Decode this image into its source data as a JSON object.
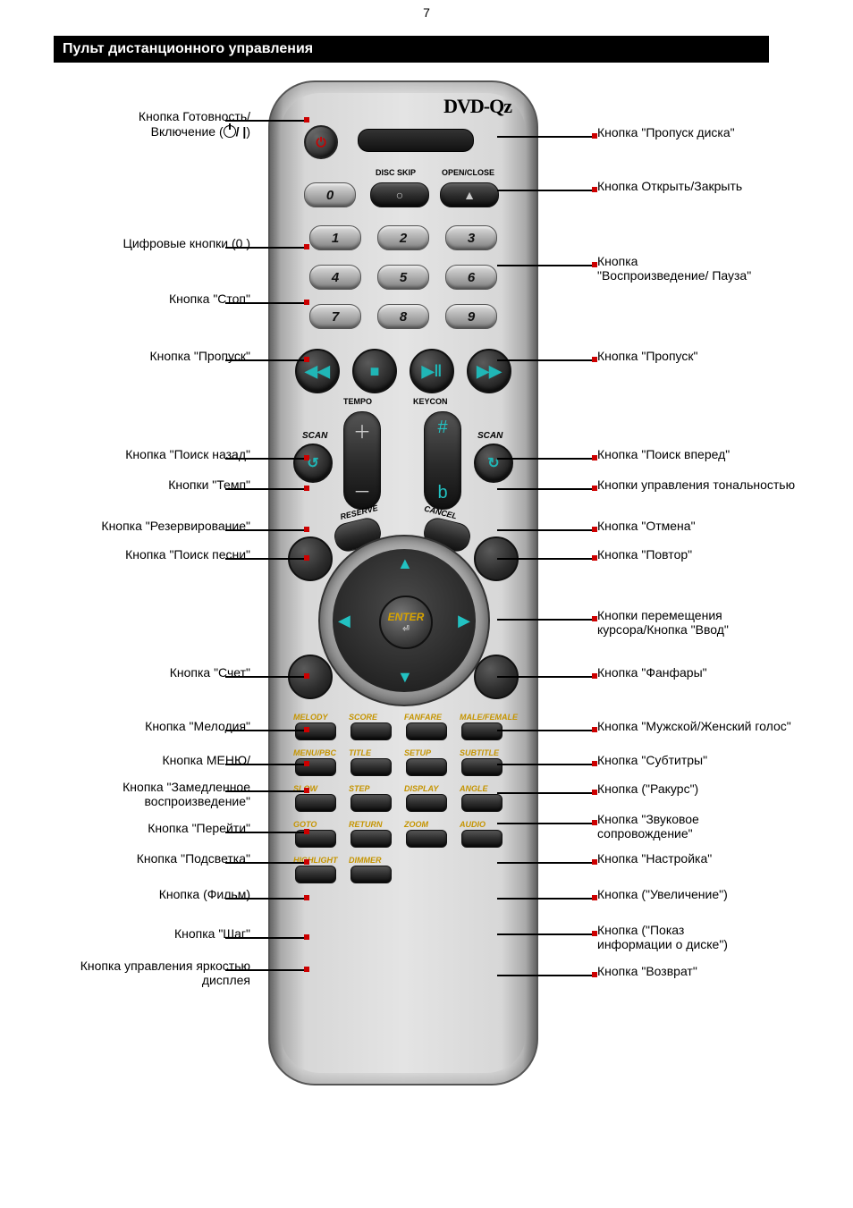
{
  "page_number": "7",
  "section_title": "Пульт дистанционного управления",
  "logo": "DVD-Qz",
  "remote": {
    "disc_skip": "DISC SKIP",
    "open_close": "OPEN/CLOSE",
    "eject_glyph": "▲",
    "digit_0": "0",
    "digits": [
      "1",
      "2",
      "3",
      "4",
      "5",
      "6",
      "7",
      "8",
      "9"
    ],
    "transport": {
      "prev": "◀◀",
      "stop": "■",
      "play": "▶‖",
      "next": "▶▶"
    },
    "tempo": "TEMPO",
    "keycon": "KEYCON",
    "scan": "SCAN",
    "reserve": "RESERVE",
    "cancel": "CANCEL",
    "enter": "ENTER",
    "enter_sub": "⏎",
    "soft_rows": [
      [
        "MELODY",
        "SCORE",
        "FANFARE",
        "MALE/FEMALE"
      ],
      [
        "MENU/PBC",
        "TITLE",
        "SETUP",
        "SUBTITLE"
      ],
      [
        "SLOW",
        "STEP",
        "DISPLAY",
        "ANGLE"
      ],
      [
        "GOTO",
        "RETURN",
        "ZOOM",
        "AUDIO"
      ],
      [
        "HIGHLIGHT",
        "DIMMER",
        "",
        ""
      ]
    ],
    "vert_plus": "＋",
    "vert_minus": "－",
    "key_sharp": "#",
    "key_b": "b"
  },
  "callouts": {
    "left": [
      "Кнопка Готовность/\nВключение (      )",
      "Цифровые кнопки (0   )",
      "Кнопка \"Стоп\"",
      "Кнопка \"Пропуск\"",
      "Кнопка \"Поиск назад\"",
      "Кнопки \"Темп\"",
      "Кнопка \"Резервирование\"",
      "Кнопка \"Поиск песни\"",
      "Кнопка \"Счет\"",
      "Кнопка \"Мелодия\"",
      "Кнопка МЕНЮ/",
      "Кнопка \"Замедленное\nвоспроизведение\"",
      "Кнопка \"Перейти\"",
      "Кнопка \"Подсветка\"",
      "Кнопка      (Фильм)",
      "Кнопка \"Шаг\"",
      "Кнопка управления яркостью\nдисплея"
    ],
    "right": [
      "Кнопка \"Пропуск диска\"",
      "Кнопка Открыть/Закрыть",
      "Кнопка\n\"Воспроизведение/ Пауза\"",
      "Кнопка \"Пропуск\"",
      "Кнопка \"Поиск вперед\"",
      "Кнопки управления тональностью",
      "Кнопка \"Отмена\"",
      "Кнопка \"Повтор\"",
      "Кнопки перемещения\nкурсора/Кнопка \"Ввод\"",
      "Кнопка \"Фанфары\"",
      "Кнопка \"Мужской/Женский голос\"",
      "Кнопка \"Субтитры\"",
      "Кнопка         (\"Ракурс\")",
      "Кнопка \"Звуковое\nсопровождение\"",
      "Кнопка \"Настройка\"",
      "Кнопка         (\"Увеличение\")",
      "Кнопка            (\"Показ\nинформации о диске\")",
      "Кнопка \"Возврат\""
    ]
  },
  "layout": {
    "left_y": [
      130,
      272,
      334,
      398,
      508,
      542,
      588,
      620,
      752,
      812,
      850,
      880,
      926,
      960,
      1000,
      1044,
      1080
    ],
    "right_y": [
      148,
      208,
      292,
      398,
      508,
      542,
      588,
      620,
      688,
      752,
      812,
      850,
      882,
      916,
      960,
      1000,
      1040,
      1086
    ]
  },
  "colors": {
    "tick": "#c00",
    "accent_cyan": "#22c2c2",
    "accent_gold": "#c59400"
  }
}
